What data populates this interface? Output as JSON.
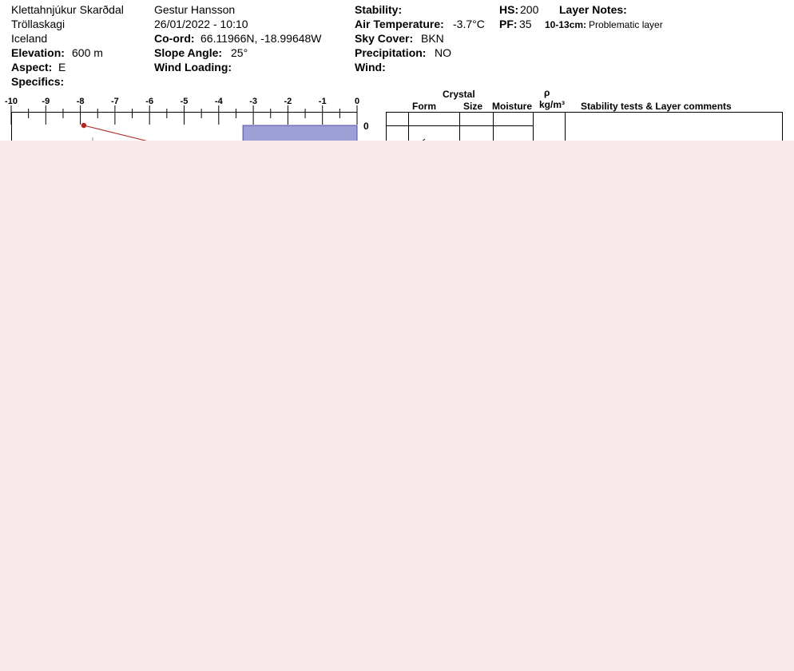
{
  "header": {
    "location": "Klettahnjúkur Skarðdal",
    "region": "Tröllaskagi",
    "country": "Iceland",
    "elevation_label": "Elevation:",
    "elevation_value": "600 m",
    "aspect_label": "Aspect:",
    "aspect_value": "E",
    "specifics_label": "Specifics:",
    "observer": "Gestur Hansson",
    "datetime": "26/01/2022 - 10:10",
    "coord_label": "Co-ord:",
    "coord_value": "66.11966N, -18.99648W",
    "slope_label": "Slope Angle:",
    "slope_value": "25°",
    "wind_loading_label": "Wind Loading:",
    "stability_label": "Stability:",
    "air_temp_label": "Air Temperature:",
    "air_temp_value": "-3.7°C",
    "sky_cover_label": "Sky Cover:",
    "sky_cover_value": "BKN",
    "precip_label": "Precipitation:",
    "precip_value": "NO",
    "wind_label": "Wind:",
    "hs_label": "HS:",
    "hs_value": "200",
    "pf_label": "PF:",
    "pf_value": "35",
    "layer_notes_label": "Layer Notes:",
    "layer_note_range": "10-13cm:",
    "layer_note_text": "Problematic layer"
  },
  "table_headers": {
    "crystal": "Crystal",
    "form": "Form",
    "size": "Size",
    "moisture": "Moisture",
    "rho": "ρ",
    "density_unit": "kg/m³",
    "comments": "Stability tests & Layer comments"
  },
  "chart_data": {
    "type": "line",
    "x_ticks": [
      "-10",
      "-9",
      "-8",
      "-7",
      "-6",
      "-5",
      "-4",
      "-3",
      "-2",
      "-1",
      "0"
    ],
    "xlim": [
      -10,
      0
    ],
    "depth_label": "0",
    "temperature_profile": [
      {
        "temp": -7.9,
        "depth": 0
      }
    ],
    "top_layer": {
      "hardness_temp_equiv": -3.3
    },
    "colors": {
      "profile_line": "#b22222",
      "profile_point": "#b22222",
      "hardness_fill": "#9f9fd7",
      "hardness_stroke": "#5050a0",
      "snow_symbol": "#9aa4b0",
      "overlay": "#f8eaea"
    }
  }
}
